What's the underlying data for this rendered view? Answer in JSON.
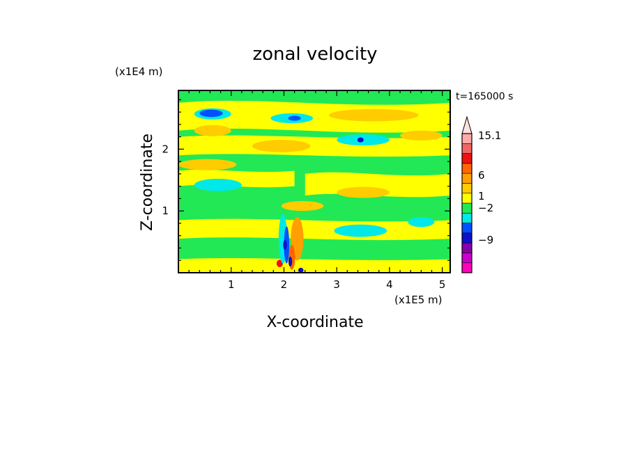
{
  "chart_data": {
    "type": "heatmap",
    "title": "zonal velocity",
    "xlabel": "X-coordinate",
    "ylabel": "Z-coordinate",
    "x_unit": "(x1E5 m)",
    "y_unit": "(x1E4 m)",
    "time_label": "t=165000 s",
    "xlim": [
      0,
      5.15
    ],
    "ylim": [
      0,
      2.95
    ],
    "x_ticks": [
      {
        "value": 1,
        "label": "1"
      },
      {
        "value": 2,
        "label": "2"
      },
      {
        "value": 3,
        "label": "3"
      },
      {
        "value": 4,
        "label": "4"
      },
      {
        "value": 5,
        "label": "5"
      }
    ],
    "y_ticks": [
      {
        "value": 1,
        "label": "1"
      },
      {
        "value": 2,
        "label": "2"
      }
    ],
    "colorbar": {
      "levels": [
        {
          "color": "#ff00bb"
        },
        {
          "color": "#cc00cc"
        },
        {
          "color": "#8800aa"
        },
        {
          "color": "#1010cc"
        },
        {
          "color": "#0050ff"
        },
        {
          "color": "#00e8e8"
        },
        {
          "color": "#22e855"
        },
        {
          "color": "#ffff00"
        },
        {
          "color": "#ffcc00"
        },
        {
          "color": "#ff9f00"
        },
        {
          "color": "#ff6600"
        },
        {
          "color": "#ee1111"
        },
        {
          "color": "#ee6666"
        },
        {
          "color": "#ffaaaa"
        }
      ],
      "labels": [
        "15.1",
        "6",
        "1",
        "−2",
        "−9"
      ],
      "extend_max": true
    },
    "background_color": "#22e855",
    "features": [
      {
        "kind": "band",
        "value": "yellow",
        "color": "#ffff00",
        "x0": 0,
        "x1": 5.15,
        "z0": 0.0,
        "z1": 0.22
      },
      {
        "kind": "band",
        "value": "yellow",
        "color": "#ffff00",
        "x0": 0,
        "x1": 5.15,
        "z0": 0.55,
        "z1": 0.85
      },
      {
        "kind": "band",
        "value": "yellow",
        "color": "#ffff00",
        "x0": 2.4,
        "x1": 5.15,
        "z0": 1.25,
        "z1": 1.6
      },
      {
        "kind": "band",
        "value": "yellow",
        "color": "#ffff00",
        "x0": 0,
        "x1": 2.2,
        "z0": 1.4,
        "z1": 1.65
      },
      {
        "kind": "band",
        "value": "yellow",
        "color": "#ffff00",
        "x0": 0,
        "x1": 5.15,
        "z0": 1.9,
        "z1": 2.2
      },
      {
        "kind": "band",
        "value": "yellow",
        "color": "#ffff00",
        "x0": 0,
        "x1": 5.15,
        "z0": 2.3,
        "z1": 2.75
      },
      {
        "kind": "blob",
        "value": "orange",
        "color": "#ffcc00",
        "cx": 0.65,
        "cz": 2.3,
        "rx": 0.35,
        "rz": 0.09
      },
      {
        "kind": "blob",
        "value": "orange",
        "color": "#ffcc00",
        "cx": 1.95,
        "cz": 2.05,
        "rx": 0.55,
        "rz": 0.1
      },
      {
        "kind": "blob",
        "value": "orange",
        "color": "#ffcc00",
        "cx": 3.7,
        "cz": 2.55,
        "rx": 0.85,
        "rz": 0.1
      },
      {
        "kind": "blob",
        "value": "orange",
        "color": "#ffcc00",
        "cx": 4.6,
        "cz": 2.22,
        "rx": 0.4,
        "rz": 0.08
      },
      {
        "kind": "blob",
        "value": "orange",
        "color": "#ffcc00",
        "cx": 0.55,
        "cz": 1.75,
        "rx": 0.55,
        "rz": 0.09
      },
      {
        "kind": "blob",
        "value": "orange",
        "color": "#ffcc00",
        "cx": 3.5,
        "cz": 1.3,
        "rx": 0.5,
        "rz": 0.09
      },
      {
        "kind": "blob",
        "value": "orange",
        "color": "#ffcc00",
        "cx": 2.35,
        "cz": 1.08,
        "rx": 0.4,
        "rz": 0.08
      },
      {
        "kind": "blob",
        "value": "cyan",
        "color": "#00e8e8",
        "cx": 0.65,
        "cz": 2.57,
        "rx": 0.35,
        "rz": 0.09
      },
      {
        "kind": "blob",
        "value": "cyan",
        "color": "#00e8e8",
        "cx": 2.15,
        "cz": 2.5,
        "rx": 0.4,
        "rz": 0.08
      },
      {
        "kind": "blob",
        "value": "cyan",
        "color": "#00e8e8",
        "cx": 3.5,
        "cz": 2.15,
        "rx": 0.5,
        "rz": 0.09
      },
      {
        "kind": "blob",
        "value": "cyan",
        "color": "#00e8e8",
        "cx": 0.75,
        "cz": 1.42,
        "rx": 0.45,
        "rz": 0.1
      },
      {
        "kind": "blob",
        "value": "cyan",
        "color": "#00e8e8",
        "cx": 3.45,
        "cz": 0.68,
        "rx": 0.5,
        "rz": 0.1
      },
      {
        "kind": "blob",
        "value": "cyan",
        "color": "#00e8e8",
        "cx": 4.6,
        "cz": 0.82,
        "rx": 0.25,
        "rz": 0.08
      },
      {
        "kind": "blob",
        "value": "blue",
        "color": "#0050ff",
        "cx": 0.62,
        "cz": 2.58,
        "rx": 0.22,
        "rz": 0.06
      },
      {
        "kind": "blob",
        "value": "blue",
        "color": "#0050ff",
        "cx": 2.2,
        "cz": 2.5,
        "rx": 0.12,
        "rz": 0.04
      },
      {
        "kind": "blob",
        "value": "blue",
        "color": "#1010cc",
        "cx": 3.45,
        "cz": 2.15,
        "rx": 0.06,
        "rz": 0.04
      },
      {
        "kind": "blob",
        "value": "orange",
        "color": "#ff9f00",
        "cx": 2.25,
        "cz": 0.55,
        "rx": 0.12,
        "rz": 0.35
      },
      {
        "kind": "blob",
        "value": "orange",
        "color": "#ff6600",
        "cx": 2.15,
        "cz": 0.25,
        "rx": 0.06,
        "rz": 0.2
      },
      {
        "kind": "blob",
        "value": "red",
        "color": "#ee1111",
        "cx": 1.92,
        "cz": 0.15,
        "rx": 0.06,
        "rz": 0.06
      },
      {
        "kind": "blob",
        "value": "cyan",
        "color": "#00e8e8",
        "cx": 1.98,
        "cz": 0.55,
        "rx": 0.08,
        "rz": 0.4
      },
      {
        "kind": "blob",
        "value": "blue",
        "color": "#0050ff",
        "cx": 2.05,
        "cz": 0.45,
        "rx": 0.05,
        "rz": 0.3
      },
      {
        "kind": "blob",
        "value": "blue",
        "color": "#1010cc",
        "cx": 2.02,
        "cz": 0.45,
        "rx": 0.035,
        "rz": 0.08
      },
      {
        "kind": "blob",
        "value": "blue",
        "color": "#1010cc",
        "cx": 2.12,
        "cz": 0.18,
        "rx": 0.035,
        "rz": 0.08
      },
      {
        "kind": "blob",
        "value": "blue",
        "color": "#1010cc",
        "cx": 2.32,
        "cz": 0.04,
        "rx": 0.05,
        "rz": 0.04
      }
    ]
  }
}
